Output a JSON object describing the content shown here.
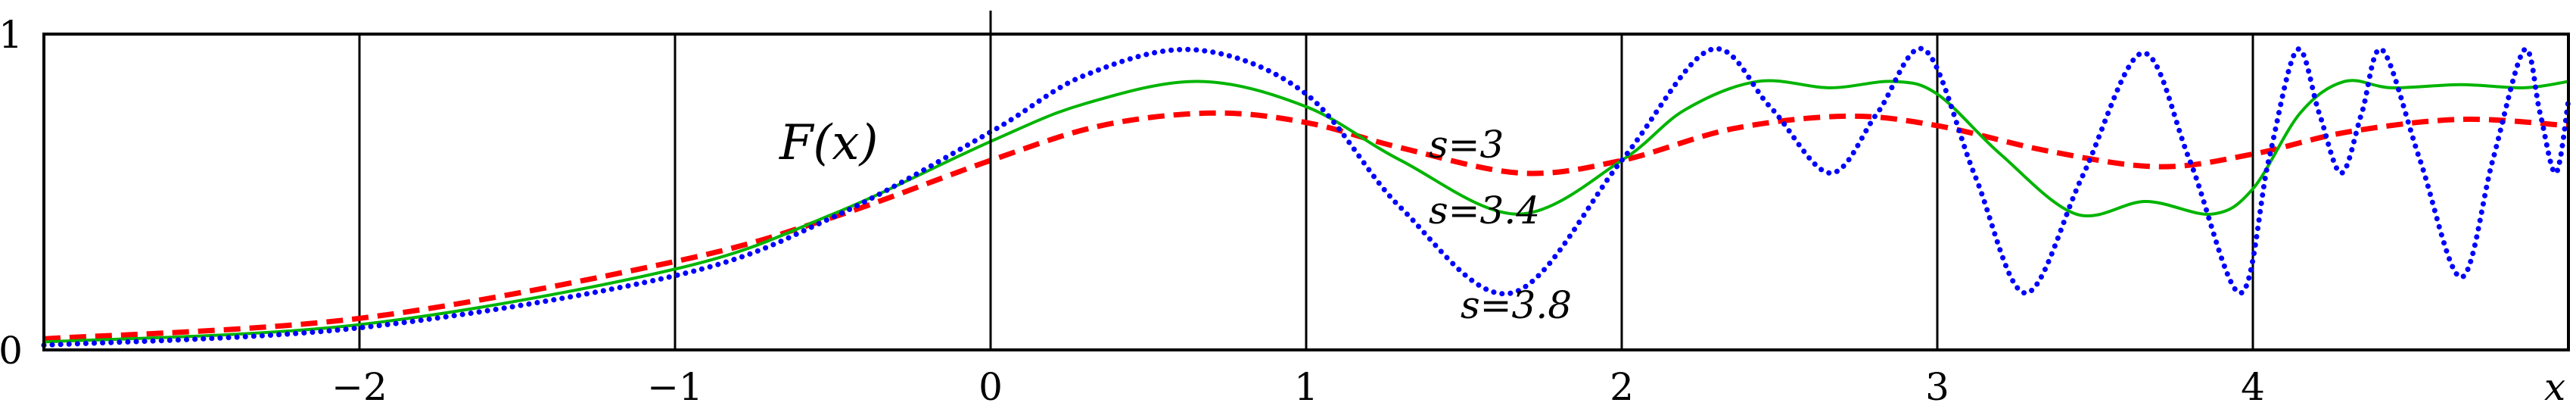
{
  "chart_data": {
    "type": "line",
    "title": "",
    "function_label": "F(x)",
    "xlabel": "x",
    "ylabel": "",
    "xlim": [
      -3,
      5
    ],
    "ylim": [
      0,
      1
    ],
    "grid": "vertical lines at integer x",
    "x_ticks": [
      -2,
      -1,
      0,
      1,
      2,
      3,
      4
    ],
    "x_tick_labels": [
      "−2",
      "−1",
      "0",
      "1",
      "2",
      "3",
      "4"
    ],
    "y_ticks": [
      0,
      1
    ],
    "y_tick_labels": [
      "0",
      "1"
    ],
    "series": [
      {
        "name": "s=3",
        "color": "#ff0000",
        "style": "dashed",
        "points": [
          [
            -3,
            0.035
          ],
          [
            -2,
            0.1
          ],
          [
            -1,
            0.28
          ],
          [
            -0.5,
            0.42
          ],
          [
            0,
            0.6
          ],
          [
            0.35,
            0.71
          ],
          [
            0.7,
            0.75
          ],
          [
            1,
            0.72
          ],
          [
            1.3,
            0.64
          ],
          [
            1.68,
            0.56
          ],
          [
            2,
            0.6
          ],
          [
            2.35,
            0.7
          ],
          [
            2.71,
            0.74
          ],
          [
            3,
            0.71
          ],
          [
            3.35,
            0.63
          ],
          [
            3.7,
            0.58
          ],
          [
            4,
            0.62
          ],
          [
            4.3,
            0.69
          ],
          [
            4.66,
            0.73
          ],
          [
            5,
            0.71
          ]
        ]
      },
      {
        "name": "s=3.4",
        "color": "#00b400",
        "style": "solid",
        "points": [
          [
            -3,
            0.025
          ],
          [
            -2,
            0.08
          ],
          [
            -1,
            0.256
          ],
          [
            -0.5,
            0.43
          ],
          [
            0,
            0.66
          ],
          [
            0.3,
            0.78
          ],
          [
            0.66,
            0.85
          ],
          [
            1,
            0.77
          ],
          [
            1.3,
            0.6
          ],
          [
            1.67,
            0.43
          ],
          [
            2,
            0.6
          ],
          [
            2.2,
            0.76
          ],
          [
            2.43,
            0.85
          ],
          [
            2.66,
            0.83
          ],
          [
            2.86,
            0.85
          ],
          [
            3,
            0.81
          ],
          [
            3.2,
            0.62
          ],
          [
            3.44,
            0.43
          ],
          [
            3.66,
            0.47
          ],
          [
            3.87,
            0.43
          ],
          [
            4,
            0.51
          ],
          [
            4.15,
            0.75
          ],
          [
            4.29,
            0.85
          ],
          [
            4.44,
            0.83
          ],
          [
            4.66,
            0.84
          ],
          [
            4.86,
            0.83
          ],
          [
            5,
            0.85
          ]
        ]
      },
      {
        "name": "s=3.8",
        "color": "#0000ff",
        "style": "dotted",
        "points": [
          [
            -3,
            0.015
          ],
          [
            -2,
            0.07
          ],
          [
            -1,
            0.235
          ],
          [
            -0.5,
            0.42
          ],
          [
            0,
            0.69
          ],
          [
            0.3,
            0.87
          ],
          [
            0.65,
            0.95
          ],
          [
            1,
            0.81
          ],
          [
            1.3,
            0.45
          ],
          [
            1.65,
            0.18
          ],
          [
            2,
            0.6
          ],
          [
            2.28,
            0.95
          ],
          [
            2.47,
            0.77
          ],
          [
            2.66,
            0.56
          ],
          [
            2.81,
            0.75
          ],
          [
            2.96,
            0.95
          ],
          [
            3.12,
            0.55
          ],
          [
            3.28,
            0.18
          ],
          [
            3.46,
            0.55
          ],
          [
            3.65,
            0.94
          ],
          [
            3.8,
            0.6
          ],
          [
            3.96,
            0.18
          ],
          [
            4.05,
            0.6
          ],
          [
            4.14,
            0.95
          ],
          [
            4.21,
            0.75
          ],
          [
            4.28,
            0.56
          ],
          [
            4.345,
            0.75
          ],
          [
            4.41,
            0.95
          ],
          [
            4.53,
            0.6
          ],
          [
            4.66,
            0.23
          ],
          [
            4.76,
            0.6
          ],
          [
            4.86,
            0.95
          ],
          [
            4.91,
            0.75
          ],
          [
            4.96,
            0.56
          ],
          [
            5,
            0.79
          ]
        ]
      }
    ]
  }
}
